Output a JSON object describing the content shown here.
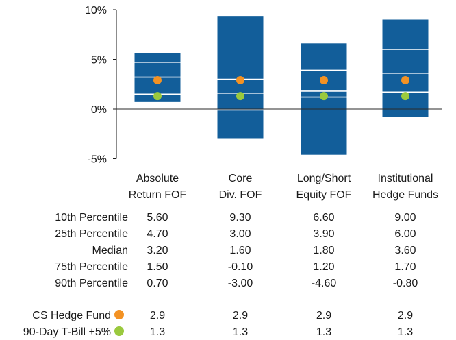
{
  "chart_data": {
    "type": "box",
    "ylim": [
      -5,
      10
    ],
    "yticks": [
      "10%",
      "5%",
      "0%",
      "-5%"
    ],
    "ytick_values": [
      10,
      5,
      0,
      -5
    ],
    "categories": [
      [
        "Absolute",
        "Return FOF"
      ],
      [
        "Core",
        "Div. FOF"
      ],
      [
        "Long/Short",
        "Equity FOF"
      ],
      [
        "Institutional",
        "Hedge Funds"
      ]
    ],
    "percentile_rows": [
      {
        "label": "10th Percentile",
        "values": [
          5.6,
          9.3,
          6.6,
          9.0
        ],
        "display": [
          "5.60",
          "9.30",
          "6.60",
          "9.00"
        ]
      },
      {
        "label": "25th Percentile",
        "values": [
          4.7,
          3.0,
          3.9,
          6.0
        ],
        "display": [
          "4.70",
          "3.00",
          "3.90",
          "6.00"
        ]
      },
      {
        "label": "Median",
        "values": [
          3.2,
          1.6,
          1.8,
          3.6
        ],
        "display": [
          "3.20",
          "1.60",
          "1.80",
          "3.60"
        ]
      },
      {
        "label": "75th Percentile",
        "values": [
          1.5,
          -0.1,
          1.2,
          1.7
        ],
        "display": [
          "1.50",
          "-0.10",
          "1.20",
          "1.70"
        ]
      },
      {
        "label": "90th Percentile",
        "values": [
          0.7,
          -3.0,
          -4.6,
          -0.8
        ],
        "display": [
          "0.70",
          "-3.00",
          "-4.60",
          "-0.80"
        ]
      }
    ],
    "series": [
      {
        "name": "CS Hedge Fund",
        "values": [
          2.9,
          2.9,
          2.9,
          2.9
        ],
        "display": [
          "2.9",
          "2.9",
          "2.9",
          "2.9"
        ],
        "color": "#f39224"
      },
      {
        "name": "90-Day T-Bill +5%",
        "values": [
          1.3,
          1.3,
          1.3,
          1.3
        ],
        "display": [
          "1.3",
          "1.3",
          "1.3",
          "1.3"
        ],
        "color": "#9ac93e"
      }
    ],
    "box_color": "#125e9a",
    "line_color": "#ffffff"
  }
}
